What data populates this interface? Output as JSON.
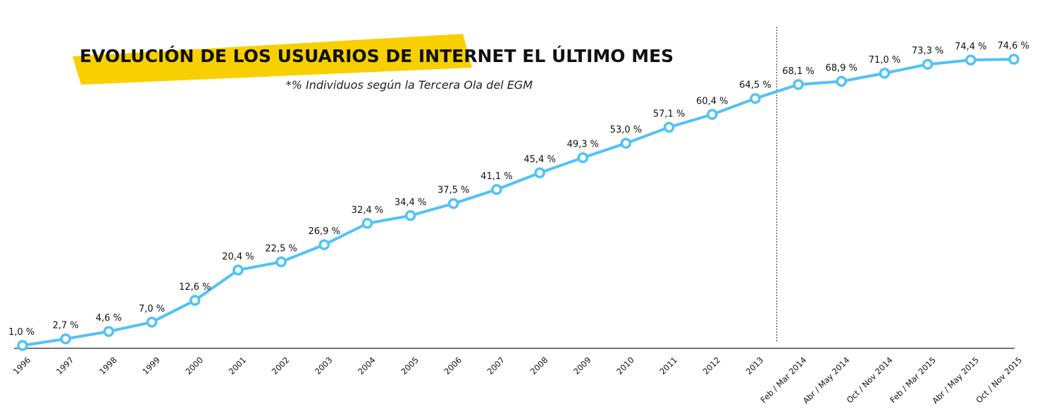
{
  "chart_data": {
    "type": "line",
    "title": "EVOLUCIÓN DE LOS USUARIOS DE INTERNET EL ÚLTIMO MES",
    "subtitle": "*% Individuos según la Tercera Ola del EGM",
    "xlabel": "",
    "ylabel": "",
    "grid": false,
    "ylim": [
      0,
      78
    ],
    "colors": {
      "line": "#52c2f5",
      "marker_fill": "#ffffff",
      "title_banner": "#f8cf00",
      "axis": "#222222",
      "divider": "#333333"
    },
    "categories": [
      "1996",
      "1997",
      "1998",
      "1999",
      "2000",
      "2001",
      "2002",
      "2003",
      "2004",
      "2005",
      "2006",
      "2007",
      "2008",
      "2009",
      "2010",
      "2011",
      "2012",
      "2013",
      "Feb / Mar 2014",
      "Abr / May 2014",
      "Oct / Nov 2014",
      "Feb / Mar 2015",
      "Abr / May 2015",
      "Oct / Nov 2015"
    ],
    "series": [
      {
        "values": [
          1.0,
          2.7,
          4.6,
          7.0,
          12.6,
          20.4,
          22.5,
          26.9,
          32.4,
          34.4,
          37.5,
          41.1,
          45.4,
          49.3,
          53.0,
          57.1,
          60.4,
          64.5,
          68.1,
          68.9,
          71.0,
          73.3,
          74.4,
          74.6
        ],
        "labels": [
          "1,0 %",
          "2,7 %",
          "4,6 %",
          "7,0 %",
          "12,6 %",
          "20,4 %",
          "22,5 %",
          "26,9 %",
          "32,4 %",
          "34,4 %",
          "37,5 %",
          "41,1 %",
          "45,4 %",
          "49,3 %",
          "53,0 %",
          "57,1 %",
          "60,4 %",
          "64,5 %",
          "68,1 %",
          "68,9 %",
          "71,0 %",
          "73,3 %",
          "74,4 %",
          "74,6 %"
        ]
      }
    ],
    "divider_between": [
      "2013",
      "Feb / Mar 2014"
    ]
  }
}
